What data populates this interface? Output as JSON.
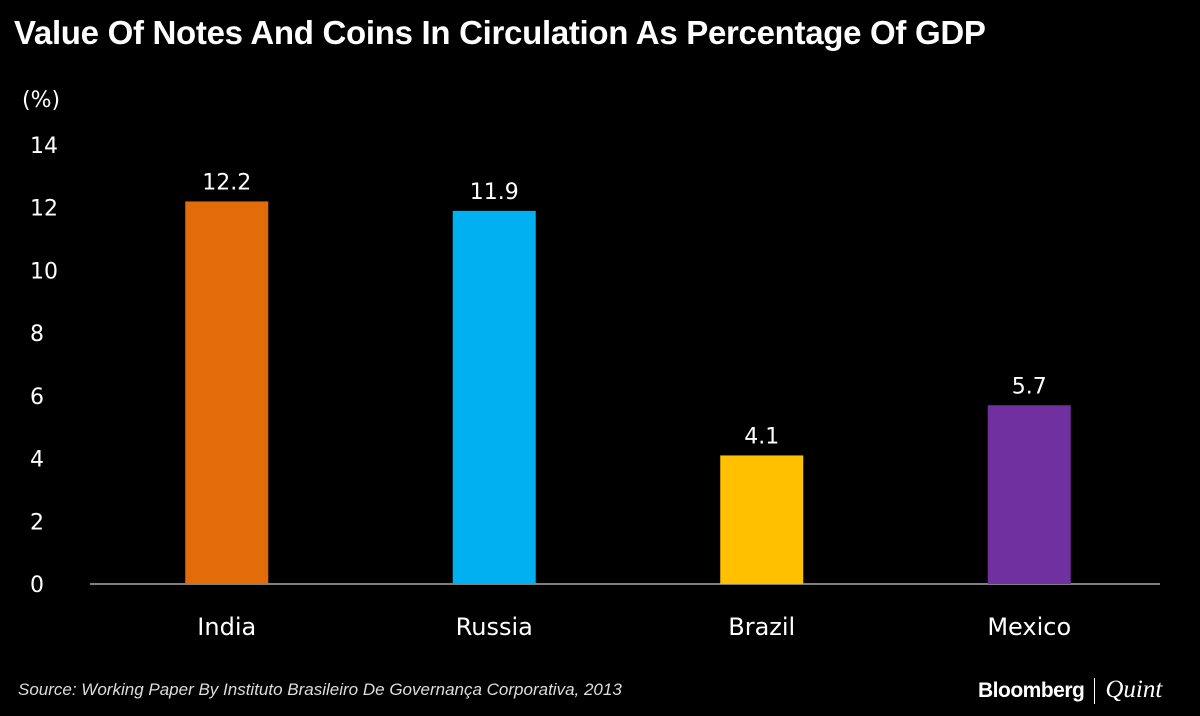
{
  "chart_data": {
    "type": "bar",
    "title": "Value Of Notes And Coins In Circulation As Percentage Of GDP",
    "ylabel": "(%)",
    "xlabel": "",
    "categories": [
      "India",
      "Russia",
      "Brazil",
      "Mexico"
    ],
    "values": [
      12.2,
      11.9,
      4.1,
      5.7
    ],
    "value_labels": [
      "12.2",
      "11.9",
      "4.1",
      "5.7"
    ],
    "colors": [
      "#E36C0A",
      "#00B0F0",
      "#FFC000",
      "#7030A0"
    ],
    "ylim": [
      0,
      14
    ],
    "yticks": [
      "0",
      "2",
      "4",
      "6",
      "8",
      "10",
      "12",
      "14"
    ],
    "grid": false
  },
  "source": "Source: Working Paper By Instituto Brasileiro De Governança Corporativa, 2013",
  "logo": {
    "left": "Bloomberg",
    "right": "Quint"
  }
}
